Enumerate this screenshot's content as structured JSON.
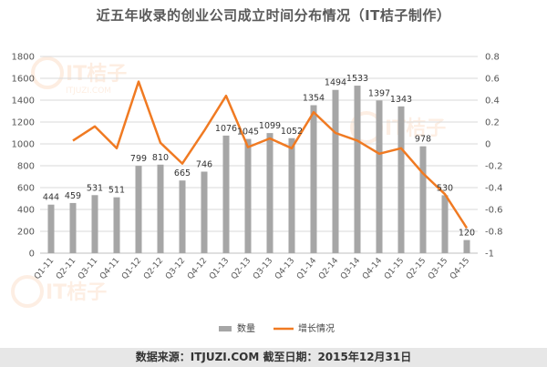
{
  "chart_data": {
    "type": "bar",
    "title": "近五年收录的创业公司成立时间分布情况（IT桔子制作）",
    "categories": [
      "Q1-11",
      "Q2-11",
      "Q3-11",
      "Q4-11",
      "Q1-12",
      "Q2-12",
      "Q3-12",
      "Q4-12",
      "Q1-13",
      "Q2-13",
      "Q3-13",
      "Q4-13",
      "Q1-14",
      "Q2-14",
      "Q3-14",
      "Q4-14",
      "Q1-15",
      "Q2-15",
      "Q3-15",
      "Q4-15"
    ],
    "series": [
      {
        "name": "数量",
        "type": "bar",
        "axis": "left",
        "color": "#a6a6a6",
        "values": [
          444,
          459,
          531,
          511,
          799,
          810,
          665,
          746,
          1076,
          1045,
          1099,
          1052,
          1354,
          1494,
          1533,
          1397,
          1343,
          978,
          530,
          120
        ]
      },
      {
        "name": "增长情况",
        "type": "line",
        "axis": "right",
        "color": "#f07a22",
        "values": [
          null,
          0.03,
          0.16,
          -0.04,
          0.57,
          0.01,
          -0.18,
          0.12,
          0.44,
          -0.03,
          0.05,
          -0.04,
          0.29,
          0.1,
          0.03,
          -0.09,
          -0.04,
          -0.27,
          -0.46,
          -0.77
        ]
      }
    ],
    "ylim_left": [
      0,
      1800
    ],
    "yticks_left": [
      0,
      200,
      400,
      600,
      800,
      1000,
      1200,
      1400,
      1600,
      1800
    ],
    "ylim_right": [
      -1,
      0.8
    ],
    "yticks_right": [
      -1,
      -0.8,
      -0.6,
      -0.4,
      -0.2,
      0,
      0.2,
      0.4,
      0.6,
      0.8
    ],
    "legend_position": "bottom",
    "grid": "horizontal",
    "watermark": "IT桔子 ITJUZI.COM"
  },
  "footer": {
    "source_text": "数据来源：ITJUZI.COM  截至日期：2015年12月31日"
  }
}
